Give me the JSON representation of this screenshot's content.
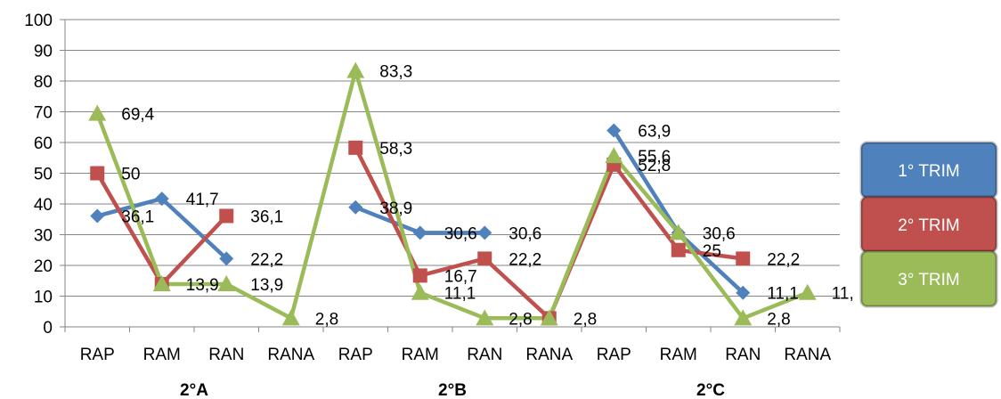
{
  "chart_data": {
    "type": "line",
    "categories": [
      "RAP",
      "RAM",
      "RAN",
      "RANA",
      "RAP",
      "RAM",
      "RAN",
      "RANA",
      "RAP",
      "RAM",
      "RAN",
      "RANA"
    ],
    "groups": [
      "2°A",
      "2°B",
      "2°C"
    ],
    "ylim": [
      0,
      100
    ],
    "yticks": [
      0,
      10,
      20,
      30,
      40,
      50,
      60,
      70,
      80,
      90,
      100
    ],
    "grid": true,
    "legend_position": "right",
    "series": [
      {
        "name": "1° TRIM",
        "color": "#4f81bd",
        "marker": "diamond",
        "values": [
          36.1,
          41.7,
          22.2,
          null,
          38.9,
          30.6,
          30.6,
          null,
          63.9,
          30.6,
          11.1,
          null
        ],
        "labels": [
          "36,1",
          "41,7",
          "22,2",
          "",
          "38,9",
          "30,6",
          "30,6",
          "",
          "63,9",
          "30,6",
          "11,1",
          ""
        ]
      },
      {
        "name": "2° TRIM",
        "color": "#c0504d",
        "marker": "square",
        "values": [
          50,
          13.9,
          36.1,
          null,
          58.3,
          16.7,
          22.2,
          2.8,
          52.8,
          25,
          22.2,
          null
        ],
        "labels": [
          "50",
          "13,9",
          "36,1",
          "",
          "58,3",
          "16,7",
          "22,2",
          "2,8",
          "52,8",
          "25",
          "22,2",
          ""
        ]
      },
      {
        "name": "3° TRIM",
        "color": "#9bbb59",
        "marker": "triangle",
        "values": [
          69.4,
          13.9,
          13.9,
          2.8,
          83.3,
          11.1,
          2.8,
          2.8,
          55.6,
          30.6,
          2.8,
          11.1
        ],
        "labels": [
          "69,4",
          "",
          "13,9",
          "2,8",
          "83,3",
          "11,1",
          "2,8",
          "",
          "55,6",
          "",
          "2,8",
          "11,"
        ]
      }
    ]
  }
}
